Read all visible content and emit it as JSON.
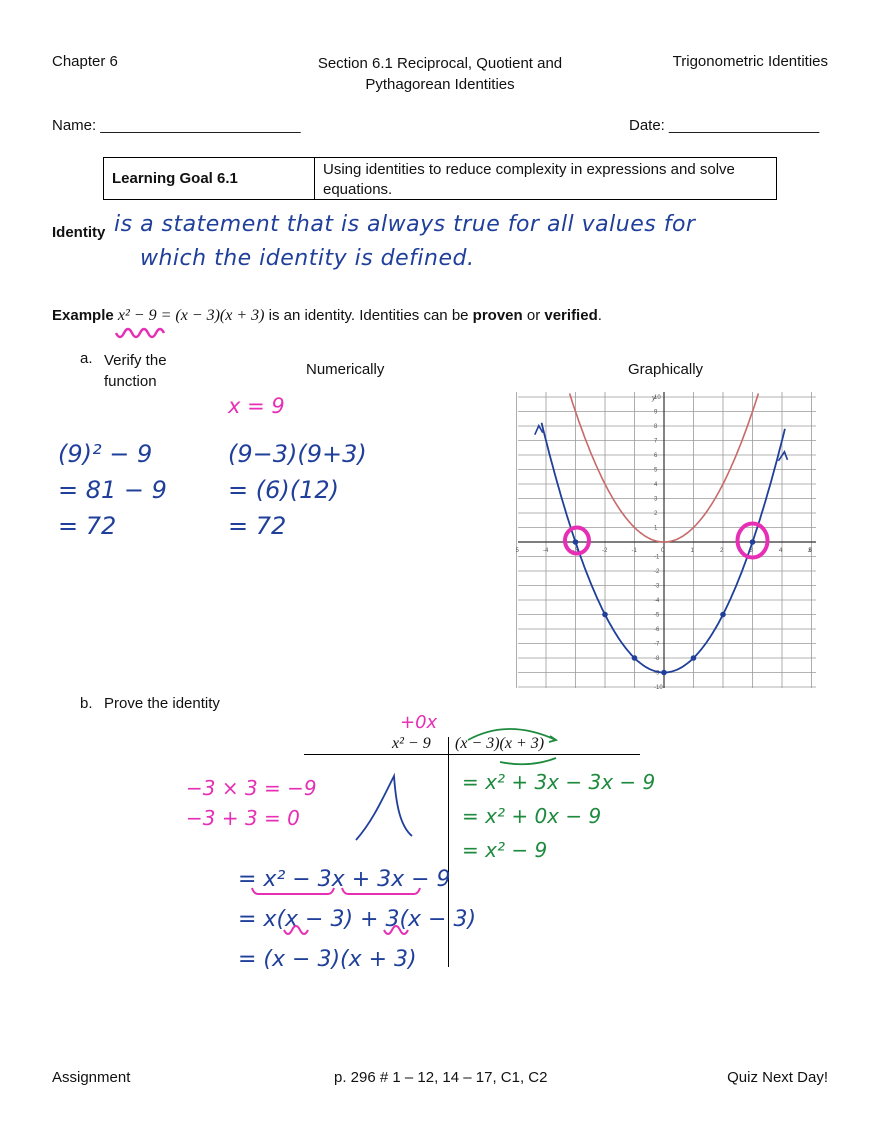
{
  "header": {
    "chapter": "Chapter 6",
    "section_line1": "Section 6.1 Reciprocal, Quotient and",
    "section_line2": "Pythagorean Identities",
    "topic": "Trigonometric Identities"
  },
  "name_label": "Name:",
  "name_blank": "________________________",
  "date_label": "Date:",
  "date_blank": "__________________",
  "learning_goal": {
    "label": "Learning Goal 6.1",
    "text": "Using identities to reduce complexity in expressions and solve equations."
  },
  "identity": {
    "label": "Identity",
    "handwritten_line1": "is a statement that is always true for all values for",
    "handwritten_line2": "which the identity is defined."
  },
  "example": {
    "label": "Example",
    "equation": "x² − 9 = (x − 3)(x + 3)",
    "text_pre": "is an identity.  Identities can be",
    "proven": "proven",
    "or": "or",
    "verified": "verified",
    "period": "."
  },
  "part_a": {
    "marker": "a.",
    "label_line1": "Verify the",
    "label_line2": "function",
    "numerically": "Numerically",
    "graphically": "Graphically",
    "x_value": "x = 9",
    "left_work": [
      "(9)² − 9",
      "= 81 − 9",
      "= 72"
    ],
    "right_work": [
      "(9−3)(9+3)",
      "= (6)(12)",
      "= 72"
    ]
  },
  "graph": {
    "y_axis_label": "y",
    "x_axis_label": "x",
    "x_ticks": [
      "-5",
      "-4",
      "-3",
      "-2",
      "-1",
      "0",
      "1",
      "2",
      "3",
      "4",
      "5"
    ],
    "y_ticks": [
      "10",
      "9",
      "8",
      "7",
      "6",
      "5",
      "4",
      "3",
      "2",
      "1",
      "-1",
      "-2",
      "-3",
      "-4",
      "-5",
      "-6",
      "-7",
      "-8",
      "-9",
      "-10"
    ],
    "accent_blue": "#1f3f9a",
    "accent_pink": "#e62fb5",
    "accent_red": "#c86a6a"
  },
  "part_b": {
    "marker": "b.",
    "label": "Prove the identity",
    "plus_0x": "+0x",
    "left_side": "x² − 9",
    "right_side": "(x − 3)(x + 3)",
    "pink_line1": "−3 × 3 = −9",
    "pink_line2": "−3 + 3 = 0",
    "left_work": [
      "= x² − 3x + 3x − 9",
      "= x(x − 3) + 3(x − 3)",
      "= (x − 3)(x + 3)"
    ],
    "right_work": [
      "= x² + 3x − 3x − 9",
      "= x² + 0x − 9",
      "= x² − 9"
    ]
  },
  "footer": {
    "assignment": "Assignment",
    "pages": "p. 296 # 1 – 12, 14 – 17, C1, C2",
    "quiz": "Quiz Next Day!"
  }
}
